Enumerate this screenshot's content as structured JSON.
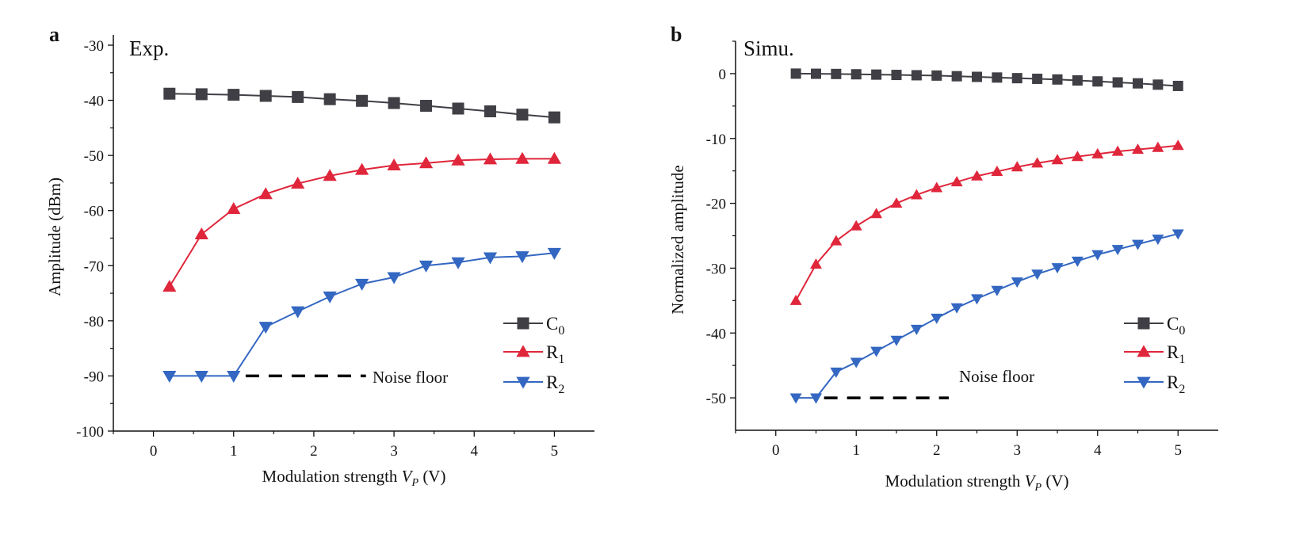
{
  "chart_data": [
    {
      "type": "line",
      "panel_label": "a",
      "title": "Exp.",
      "xlabel": "Modulation strength ",
      "xlabel_var": "V",
      "xlabel_sub": "P",
      "xlabel_unit": " (V)",
      "ylabel": "Amplitude (dBm)",
      "xlim": [
        -0.5,
        5.5
      ],
      "ylim": [
        -100,
        -30
      ],
      "xticks": [
        0,
        1,
        2,
        3,
        4,
        5
      ],
      "yticks": [
        -100,
        -90,
        -80,
        -70,
        -60,
        -50,
        -40,
        -30
      ],
      "grid": false,
      "legend_position": "bottom-right",
      "x": [
        0.2,
        0.6,
        1.0,
        1.4,
        1.8,
        2.2,
        2.6,
        3.0,
        3.4,
        3.8,
        4.2,
        4.6,
        5.0
      ],
      "series": [
        {
          "name": "C",
          "sub": "0",
          "color": "#3f3f45",
          "marker": "square",
          "values": [
            -38.8,
            -38.9,
            -39.0,
            -39.2,
            -39.4,
            -39.8,
            -40.1,
            -40.5,
            -41.0,
            -41.5,
            -42.0,
            -42.6,
            -43.1
          ]
        },
        {
          "name": "R",
          "sub": "1",
          "color": "#e0263b",
          "marker": "triangle-up",
          "values": [
            -73.8,
            -64.3,
            -59.7,
            -57.0,
            -55.1,
            -53.7,
            -52.6,
            -51.8,
            -51.4,
            -50.9,
            -50.7,
            -50.6,
            -50.6
          ]
        },
        {
          "name": "R",
          "sub": "2",
          "color": "#3367c2",
          "marker": "triangle-down",
          "values": [
            -90.0,
            -90.0,
            -90.0,
            -81.1,
            -78.3,
            -75.6,
            -73.3,
            -72.1,
            -70.0,
            -69.4,
            -68.5,
            -68.3,
            -67.7
          ]
        }
      ],
      "annotation": {
        "text": "Noise floor",
        "line_y": -90,
        "line_x": [
          1.15,
          2.65
        ]
      }
    },
    {
      "type": "line",
      "panel_label": "b",
      "title": "Simu.",
      "xlabel": "Modulation strength ",
      "xlabel_var": "V",
      "xlabel_sub": "P",
      "xlabel_unit": " (V)",
      "ylabel": "Normalized amplitude",
      "xlim": [
        -0.5,
        5.5
      ],
      "ylim": [
        -55,
        5
      ],
      "xticks": [
        0,
        1,
        2,
        3,
        4,
        5
      ],
      "yticks": [
        -50,
        -40,
        -30,
        -20,
        -10,
        0
      ],
      "grid": false,
      "legend_position": "bottom-right",
      "x": [
        0.25,
        0.5,
        0.75,
        1.0,
        1.25,
        1.5,
        1.75,
        2.0,
        2.25,
        2.5,
        2.75,
        3.0,
        3.25,
        3.5,
        3.75,
        4.0,
        4.25,
        4.5,
        4.75,
        5.0
      ],
      "series": [
        {
          "name": "C",
          "sub": "0",
          "color": "#3f3f45",
          "marker": "square",
          "values": [
            0,
            -0.02,
            -0.05,
            -0.1,
            -0.15,
            -0.2,
            -0.25,
            -0.3,
            -0.4,
            -0.5,
            -0.6,
            -0.7,
            -0.8,
            -0.9,
            -1.05,
            -1.2,
            -1.35,
            -1.5,
            -1.7,
            -1.9
          ]
        },
        {
          "name": "R",
          "sub": "1",
          "color": "#e0263b",
          "marker": "triangle-up",
          "values": [
            -35.0,
            -29.4,
            -25.8,
            -23.5,
            -21.6,
            -20.0,
            -18.7,
            -17.6,
            -16.7,
            -15.8,
            -15.1,
            -14.4,
            -13.8,
            -13.3,
            -12.8,
            -12.4,
            -12.0,
            -11.7,
            -11.4,
            -11.1
          ]
        },
        {
          "name": "R",
          "sub": "2",
          "color": "#3367c2",
          "marker": "triangle-down",
          "values": [
            -50.0,
            -50.0,
            -46.0,
            -44.5,
            -42.8,
            -41.1,
            -39.4,
            -37.7,
            -36.1,
            -34.7,
            -33.4,
            -32.1,
            -30.9,
            -29.9,
            -28.9,
            -27.9,
            -27.1,
            -26.3,
            -25.5,
            -24.7
          ]
        }
      ],
      "annotation": {
        "text": "Noise floor",
        "line_y": -50,
        "line_x": [
          0.6,
          2.15
        ]
      }
    }
  ]
}
